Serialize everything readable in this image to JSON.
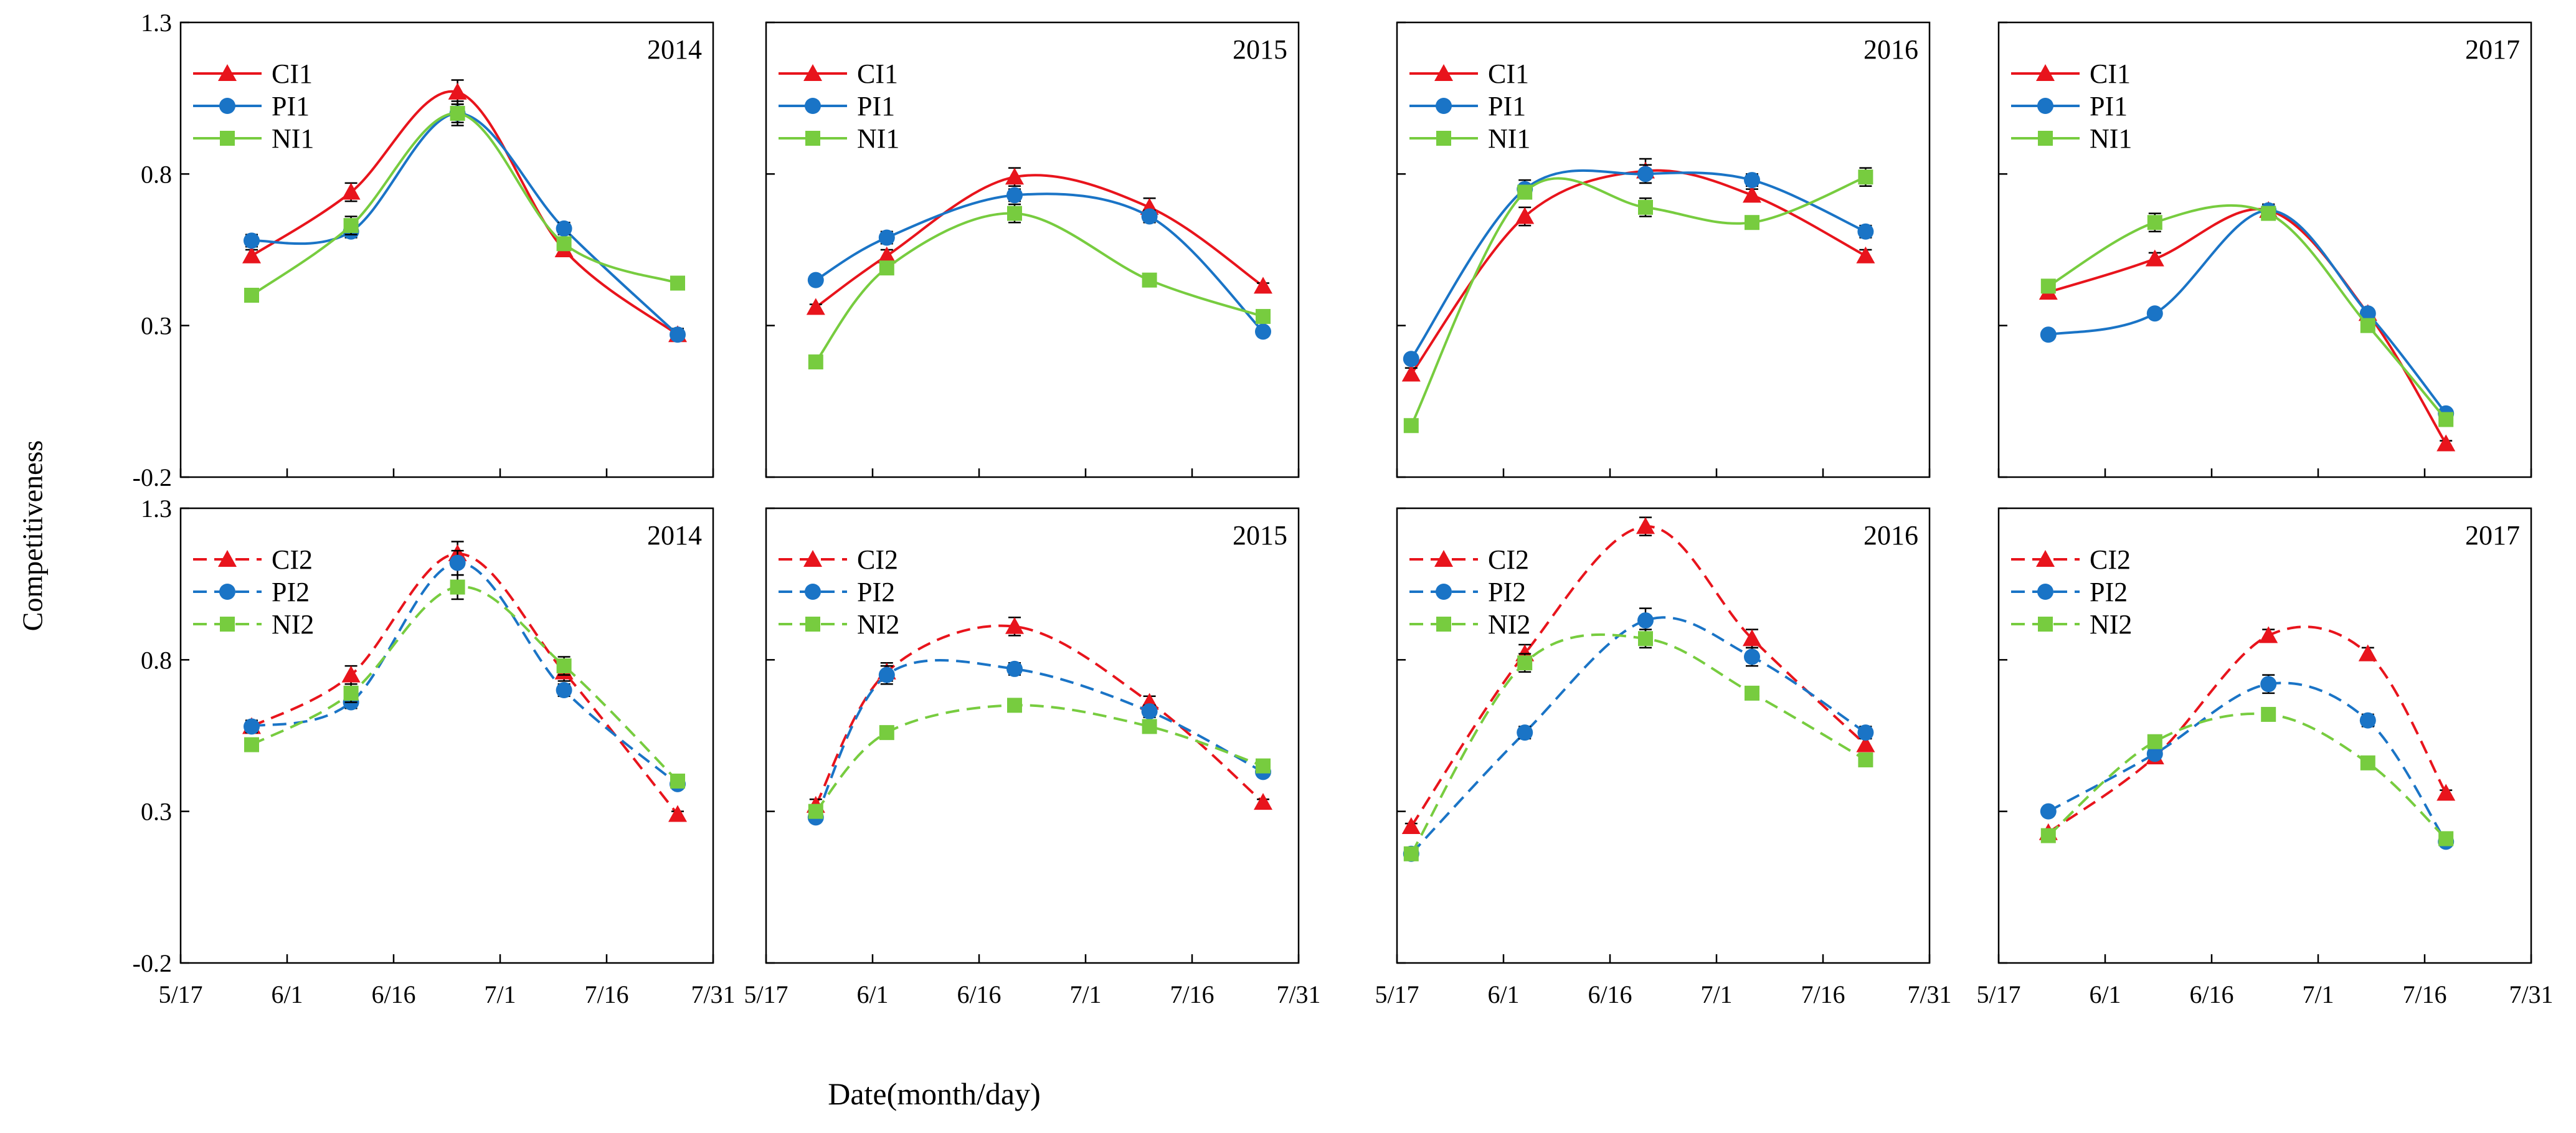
{
  "figure": {
    "ylabel": "Competitiveness",
    "xlabel": "Date(month/day)"
  },
  "chart_data": [
    {
      "type": "line",
      "row": 0,
      "col": 0,
      "title": "2014",
      "smooth": true,
      "dash": "solid",
      "ylim": [
        -0.2,
        1.3
      ],
      "yticks": [
        "1.3",
        "0.8",
        "0.3",
        "-0.2"
      ],
      "yticks_shown": true,
      "xticks": [
        "5/17",
        "6/1",
        "6/16",
        "7/1",
        "7/16",
        "7/31"
      ],
      "xticks_shown": false,
      "legend": "top-left",
      "series": [
        {
          "name": "CI1",
          "color": "#e8141c",
          "marker": "triangle",
          "x": [
            "5/27",
            "6/10",
            "6/25",
            "7/10",
            "7/26"
          ],
          "y": [
            0.53,
            0.74,
            1.07,
            0.55,
            0.27
          ],
          "err": [
            0.02,
            0.03,
            0.04,
            0.02,
            0.02
          ]
        },
        {
          "name": "PI1",
          "color": "#1a74c6",
          "marker": "circle",
          "x": [
            "5/27",
            "6/10",
            "6/25",
            "7/10",
            "7/26"
          ],
          "y": [
            0.58,
            0.61,
            1.0,
            0.62,
            0.27
          ],
          "err": [
            0.02,
            0.02,
            0.03,
            0.02,
            0.01
          ]
        },
        {
          "name": "NI1",
          "color": "#77cc3f",
          "marker": "square",
          "x": [
            "5/27",
            "6/10",
            "6/25",
            "7/10",
            "7/26"
          ],
          "y": [
            0.4,
            0.63,
            1.0,
            0.57,
            0.44
          ],
          "err": [
            0.02,
            0.03,
            0.04,
            0.02,
            0.02
          ]
        }
      ]
    },
    {
      "type": "line",
      "row": 0,
      "col": 1,
      "title": "2015",
      "smooth": true,
      "dash": "solid",
      "ylim": [
        -0.2,
        1.3
      ],
      "yticks": [
        "1.3",
        "0.8",
        "0.3",
        "-0.2"
      ],
      "yticks_shown": false,
      "xticks": [
        "5/17",
        "6/1",
        "6/16",
        "7/1",
        "7/16",
        "7/31"
      ],
      "xticks_shown": false,
      "legend": "top-left",
      "series": [
        {
          "name": "CI1",
          "color": "#e8141c",
          "marker": "triangle",
          "x": [
            "5/24",
            "6/3",
            "6/21",
            "7/10",
            "7/26"
          ],
          "y": [
            0.36,
            0.53,
            0.79,
            0.69,
            0.43
          ],
          "err": [
            0.01,
            0.02,
            0.03,
            0.03,
            0.01
          ]
        },
        {
          "name": "PI1",
          "color": "#1a74c6",
          "marker": "circle",
          "x": [
            "5/24",
            "6/3",
            "6/21",
            "7/10",
            "7/26"
          ],
          "y": [
            0.45,
            0.59,
            0.73,
            0.66,
            0.28
          ],
          "err": [
            0.01,
            0.02,
            0.02,
            0.02,
            0.01
          ]
        },
        {
          "name": "NI1",
          "color": "#77cc3f",
          "marker": "square",
          "x": [
            "5/24",
            "6/3",
            "6/21",
            "7/10",
            "7/26"
          ],
          "y": [
            0.18,
            0.49,
            0.67,
            0.45,
            0.33
          ],
          "err": [
            0.01,
            0.02,
            0.03,
            0.01,
            0.01
          ]
        }
      ]
    },
    {
      "type": "line",
      "row": 0,
      "col": 2,
      "title": "2016",
      "smooth": true,
      "dash": "solid",
      "ylim": [
        -0.2,
        1.3
      ],
      "yticks": [
        "1.3",
        "0.8",
        "0.3",
        "-0.2"
      ],
      "yticks_shown": false,
      "xticks": [
        "5/17",
        "6/1",
        "6/16",
        "7/1",
        "7/16",
        "7/31"
      ],
      "xticks_shown": false,
      "legend": "top-left",
      "series": [
        {
          "name": "CI1",
          "color": "#e8141c",
          "marker": "triangle",
          "x": [
            "5/19",
            "6/4",
            "6/21",
            "7/6",
            "7/22"
          ],
          "y": [
            0.14,
            0.66,
            0.81,
            0.73,
            0.53
          ],
          "err": [
            0.02,
            0.03,
            0.04,
            0.02,
            0.02
          ]
        },
        {
          "name": "PI1",
          "color": "#1a74c6",
          "marker": "circle",
          "x": [
            "5/19",
            "6/4",
            "6/21",
            "7/6",
            "7/22"
          ],
          "y": [
            0.19,
            0.75,
            0.8,
            0.78,
            0.61
          ],
          "err": [
            0.01,
            0.03,
            0.03,
            0.02,
            0.02
          ]
        },
        {
          "name": "NI1",
          "color": "#77cc3f",
          "marker": "square",
          "x": [
            "5/19",
            "6/4",
            "6/21",
            "7/6",
            "7/22"
          ],
          "y": [
            -0.03,
            0.74,
            0.69,
            0.64,
            0.79
          ],
          "err": [
            0.01,
            0.02,
            0.03,
            0.02,
            0.03
          ]
        }
      ]
    },
    {
      "type": "line",
      "row": 0,
      "col": 3,
      "title": "2017",
      "smooth": true,
      "dash": "solid",
      "ylim": [
        -0.2,
        1.3
      ],
      "yticks": [
        "1.3",
        "0.8",
        "0.3",
        "-0.2"
      ],
      "yticks_shown": false,
      "xticks": [
        "5/17",
        "6/1",
        "6/16",
        "7/1",
        "7/16",
        "7/31"
      ],
      "xticks_shown": false,
      "legend": "top-left",
      "series": [
        {
          "name": "CI1",
          "color": "#e8141c",
          "marker": "triangle",
          "x": [
            "5/24",
            "6/8",
            "6/24",
            "7/8",
            "7/19"
          ],
          "y": [
            0.41,
            0.52,
            0.68,
            0.34,
            -0.09
          ],
          "err": [
            0.01,
            0.02,
            0.02,
            0.01,
            0.01
          ]
        },
        {
          "name": "PI1",
          "color": "#1a74c6",
          "marker": "circle",
          "x": [
            "5/24",
            "6/8",
            "6/24",
            "7/8",
            "7/19"
          ],
          "y": [
            0.27,
            0.34,
            0.68,
            0.34,
            0.01
          ],
          "err": [
            0.01,
            0.01,
            0.02,
            0.01,
            0.01
          ]
        },
        {
          "name": "NI1",
          "color": "#77cc3f",
          "marker": "square",
          "x": [
            "5/24",
            "6/8",
            "6/24",
            "7/8",
            "7/19"
          ],
          "y": [
            0.43,
            0.64,
            0.67,
            0.3,
            -0.01
          ],
          "err": [
            0.01,
            0.03,
            0.02,
            0.01,
            0.01
          ]
        }
      ]
    },
    {
      "type": "line",
      "row": 1,
      "col": 0,
      "title": "2014",
      "smooth": true,
      "dash": "dashed",
      "ylim": [
        -0.2,
        1.3
      ],
      "yticks": [
        "1.3",
        "0.8",
        "0.3",
        "-0.2"
      ],
      "yticks_shown": true,
      "xticks": [
        "5/17",
        "6/1",
        "6/16",
        "7/1",
        "7/16",
        "7/31"
      ],
      "xticks_shown": true,
      "legend": "top-left",
      "series": [
        {
          "name": "CI2",
          "color": "#e8141c",
          "marker": "triangle",
          "x": [
            "5/27",
            "6/10",
            "6/25",
            "7/10",
            "7/26"
          ],
          "y": [
            0.58,
            0.75,
            1.15,
            0.76,
            0.29
          ],
          "err": [
            0.02,
            0.03,
            0.04,
            0.03,
            0.01
          ]
        },
        {
          "name": "PI2",
          "color": "#1a74c6",
          "marker": "circle",
          "x": [
            "5/27",
            "6/10",
            "6/25",
            "7/10",
            "7/26"
          ],
          "y": [
            0.58,
            0.66,
            1.12,
            0.7,
            0.39
          ],
          "err": [
            0.02,
            0.02,
            0.04,
            0.02,
            0.01
          ]
        },
        {
          "name": "NI2",
          "color": "#77cc3f",
          "marker": "square",
          "x": [
            "5/27",
            "6/10",
            "6/25",
            "7/10",
            "7/26"
          ],
          "y": [
            0.52,
            0.69,
            1.04,
            0.78,
            0.4
          ],
          "err": [
            0.02,
            0.03,
            0.04,
            0.03,
            0.02
          ]
        }
      ]
    },
    {
      "type": "line",
      "row": 1,
      "col": 1,
      "title": "2015",
      "smooth": true,
      "dash": "dashed",
      "ylim": [
        -0.2,
        1.3
      ],
      "yticks": [
        "1.3",
        "0.8",
        "0.3",
        "-0.2"
      ],
      "yticks_shown": false,
      "xticks": [
        "5/17",
        "6/1",
        "6/16",
        "7/1",
        "7/16",
        "7/31"
      ],
      "xticks_shown": true,
      "legend": "top-left",
      "series": [
        {
          "name": "CI2",
          "color": "#e8141c",
          "marker": "triangle",
          "x": [
            "5/24",
            "6/3",
            "6/21",
            "7/10",
            "7/26"
          ],
          "y": [
            0.32,
            0.76,
            0.91,
            0.66,
            0.33
          ],
          "err": [
            0.02,
            0.03,
            0.03,
            0.02,
            0.01
          ]
        },
        {
          "name": "PI2",
          "color": "#1a74c6",
          "marker": "circle",
          "x": [
            "5/24",
            "6/3",
            "6/21",
            "7/10",
            "7/26"
          ],
          "y": [
            0.28,
            0.75,
            0.77,
            0.63,
            0.43
          ],
          "err": [
            0.01,
            0.03,
            0.02,
            0.02,
            0.01
          ]
        },
        {
          "name": "NI2",
          "color": "#77cc3f",
          "marker": "square",
          "x": [
            "5/24",
            "6/3",
            "6/21",
            "7/10",
            "7/26"
          ],
          "y": [
            0.3,
            0.56,
            0.65,
            0.58,
            0.45
          ],
          "err": [
            0.01,
            0.02,
            0.02,
            0.02,
            0.01
          ]
        }
      ]
    },
    {
      "type": "line",
      "row": 1,
      "col": 2,
      "title": "2016",
      "smooth": true,
      "dash": "dashed",
      "ylim": [
        -0.2,
        1.3
      ],
      "yticks": [
        "1.3",
        "0.8",
        "0.3",
        "-0.2"
      ],
      "yticks_shown": false,
      "xticks": [
        "5/17",
        "6/1",
        "6/16",
        "7/1",
        "7/16",
        "7/31"
      ],
      "xticks_shown": true,
      "legend": "top-left",
      "series": [
        {
          "name": "CI2",
          "color": "#e8141c",
          "marker": "triangle",
          "x": [
            "5/19",
            "6/4",
            "6/21",
            "7/6",
            "7/22"
          ],
          "y": [
            0.25,
            0.82,
            1.24,
            0.87,
            0.52
          ],
          "err": [
            0.01,
            0.03,
            0.03,
            0.03,
            0.02
          ]
        },
        {
          "name": "PI2",
          "color": "#1a74c6",
          "marker": "circle",
          "x": [
            "5/19",
            "6/4",
            "6/21",
            "7/6",
            "7/22"
          ],
          "y": [
            0.16,
            0.56,
            0.93,
            0.81,
            0.56
          ],
          "err": [
            0.01,
            0.02,
            0.04,
            0.03,
            0.02
          ]
        },
        {
          "name": "NI2",
          "color": "#77cc3f",
          "marker": "square",
          "x": [
            "5/19",
            "6/4",
            "6/21",
            "7/6",
            "7/22"
          ],
          "y": [
            0.16,
            0.79,
            0.87,
            0.69,
            0.47
          ],
          "err": [
            0.01,
            0.03,
            0.03,
            0.02,
            0.02
          ]
        }
      ]
    },
    {
      "type": "line",
      "row": 1,
      "col": 3,
      "title": "2017",
      "smooth": true,
      "dash": "dashed",
      "ylim": [
        -0.2,
        1.3
      ],
      "yticks": [
        "1.3",
        "0.8",
        "0.3",
        "-0.2"
      ],
      "yticks_shown": false,
      "xticks": [
        "5/17",
        "6/1",
        "6/16",
        "7/1",
        "7/16",
        "7/31"
      ],
      "xticks_shown": true,
      "legend": "top-left",
      "series": [
        {
          "name": "CI2",
          "color": "#e8141c",
          "marker": "triangle",
          "x": [
            "5/24",
            "6/8",
            "6/24",
            "7/8",
            "7/19"
          ],
          "y": [
            0.23,
            0.48,
            0.88,
            0.82,
            0.36
          ],
          "err": [
            0.01,
            0.01,
            0.02,
            0.02,
            0.01
          ]
        },
        {
          "name": "PI2",
          "color": "#1a74c6",
          "marker": "circle",
          "x": [
            "5/24",
            "6/8",
            "6/24",
            "7/8",
            "7/19"
          ],
          "y": [
            0.3,
            0.49,
            0.72,
            0.6,
            0.2
          ],
          "err": [
            0.01,
            0.01,
            0.03,
            0.02,
            0.01
          ]
        },
        {
          "name": "NI2",
          "color": "#77cc3f",
          "marker": "square",
          "x": [
            "5/24",
            "6/8",
            "6/24",
            "7/8",
            "7/19"
          ],
          "y": [
            0.22,
            0.53,
            0.62,
            0.46,
            0.21
          ],
          "err": [
            0.01,
            0.01,
            0.02,
            0.01,
            0.01
          ]
        }
      ]
    }
  ]
}
